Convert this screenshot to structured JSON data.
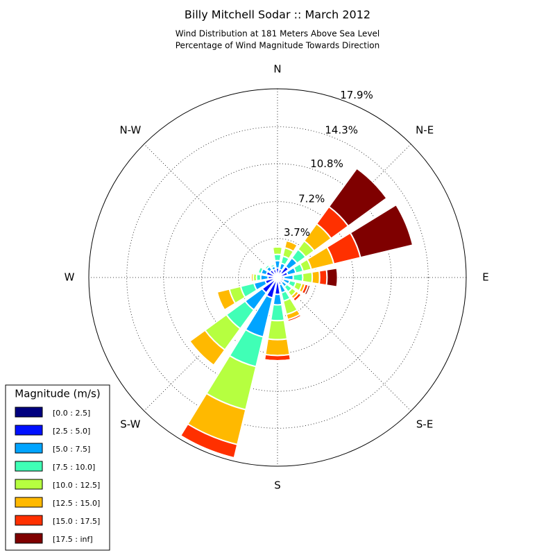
{
  "chart_data": {
    "type": "windrose",
    "title": "Billy Mitchell Sodar :: March 2012",
    "subtitle": [
      "Wind Distribution at 181 Meters Above Sea Level",
      "Percentage of Wind Magnitude Towards Direction"
    ],
    "directions": [
      0,
      22.5,
      45,
      67.5,
      90,
      112.5,
      135,
      157.5,
      180,
      202.5,
      225,
      247.5,
      270,
      292.5,
      315,
      337.5
    ],
    "direction_labels": [
      {
        "value": 0,
        "label": "N"
      },
      {
        "value": 45,
        "label": "N-E"
      },
      {
        "value": 90,
        "label": "E"
      },
      {
        "value": 135,
        "label": "S-E"
      },
      {
        "value": 180,
        "label": "S"
      },
      {
        "value": 225,
        "label": "S-W"
      },
      {
        "value": 270,
        "label": "W"
      },
      {
        "value": 315,
        "label": "N-W"
      }
    ],
    "rlim": [
      0,
      17.9
    ],
    "rticks": [
      {
        "value": 3.7,
        "label": "3.7%"
      },
      {
        "value": 7.2,
        "label": "7.2%"
      },
      {
        "value": 10.8,
        "label": "10.8%"
      },
      {
        "value": 14.3,
        "label": "14.3%"
      },
      {
        "value": 17.9,
        "label": "17.9%"
      }
    ],
    "legend_title": "Magnitude (m/s)",
    "legend": "lower-left",
    "series": [
      {
        "name": "[0.0 : 2.5]",
        "color": "#00007f",
        "values": [
          0.3,
          0.3,
          0.5,
          0.3,
          0.2,
          0.2,
          0.2,
          0.2,
          0.3,
          0.3,
          0.3,
          0.3,
          0.3,
          0.3,
          0.3,
          0.3
        ]
      },
      {
        "name": "[2.5 : 5.0]",
        "color": "#0010ff",
        "values": [
          0.6,
          0.5,
          0.8,
          0.7,
          0.4,
          0.4,
          0.4,
          0.5,
          1.3,
          1.7,
          1.5,
          0.9,
          0.6,
          0.8,
          0.6,
          0.5
        ]
      },
      {
        "name": "[5.0 : 7.5]",
        "color": "#00a4ff",
        "values": [
          0.7,
          0.6,
          1.0,
          0.8,
          0.9,
          0.6,
          0.5,
          0.8,
          1.0,
          3.8,
          2.0,
          1.1,
          0.7,
          0.5,
          0.4,
          0.3
        ]
      },
      {
        "name": "[7.5 : 10.0]",
        "color": "#40ffb6",
        "values": [
          0.6,
          0.7,
          1.0,
          0.7,
          0.9,
          0.6,
          0.6,
          0.8,
          1.5,
          2.9,
          2.2,
          1.3,
          0.4,
          0.3,
          0.2,
          0.2
        ]
      },
      {
        "name": "[10.0 : 12.5]",
        "color": "#b6ff40",
        "values": [
          0.7,
          0.8,
          1.0,
          0.8,
          0.9,
          0.6,
          0.5,
          1.3,
          1.8,
          4.2,
          2.5,
          1.1,
          0.3,
          0.1,
          0.1,
          0
        ]
      },
      {
        "name": "[12.5 : 15.0]",
        "color": "#ffb900",
        "values": [
          0,
          0.7,
          2.0,
          2.2,
          0.7,
          0.3,
          0.3,
          0.5,
          1.5,
          3.4,
          1.8,
          1.2,
          0.2,
          0,
          0,
          0
        ]
      },
      {
        "name": "[15.0 : 17.5]",
        "color": "#ff3000",
        "values": [
          0,
          0,
          2.0,
          2.6,
          0.7,
          0.3,
          0.3,
          0.2,
          0.5,
          1.3,
          0,
          0,
          0,
          0,
          0,
          0
        ]
      },
      {
        "name": "[17.5 : inf]",
        "color": "#7f0000",
        "values": [
          0,
          0,
          4.5,
          5.1,
          1.0,
          0.2,
          0.1,
          0,
          0,
          0,
          0,
          0,
          0,
          0,
          0,
          0
        ]
      }
    ]
  }
}
